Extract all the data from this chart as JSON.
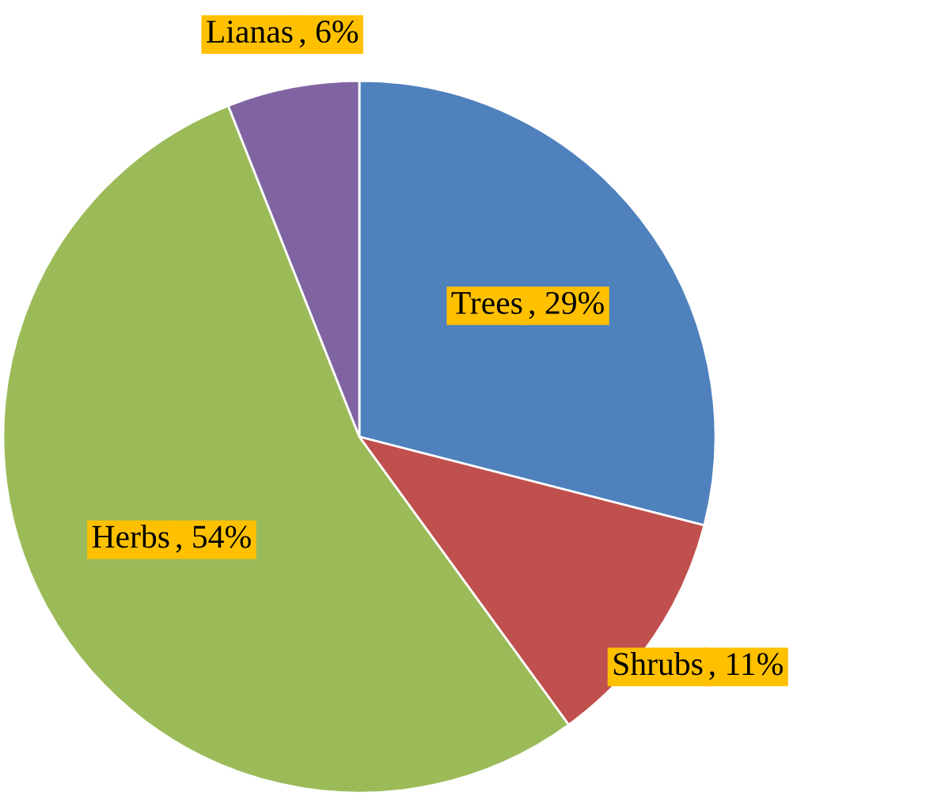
{
  "chart_data": {
    "type": "pie",
    "categories": [
      "Trees",
      "Shrubs",
      "Herbs",
      "Lianas"
    ],
    "values": [
      29,
      11,
      54,
      6
    ],
    "value_labels": [
      ", 29%",
      ", 11%",
      ", 54%",
      ", 6%"
    ],
    "colors": [
      "#4f81bd",
      "#c0504d",
      "#9bbb59",
      "#8064a2"
    ]
  }
}
